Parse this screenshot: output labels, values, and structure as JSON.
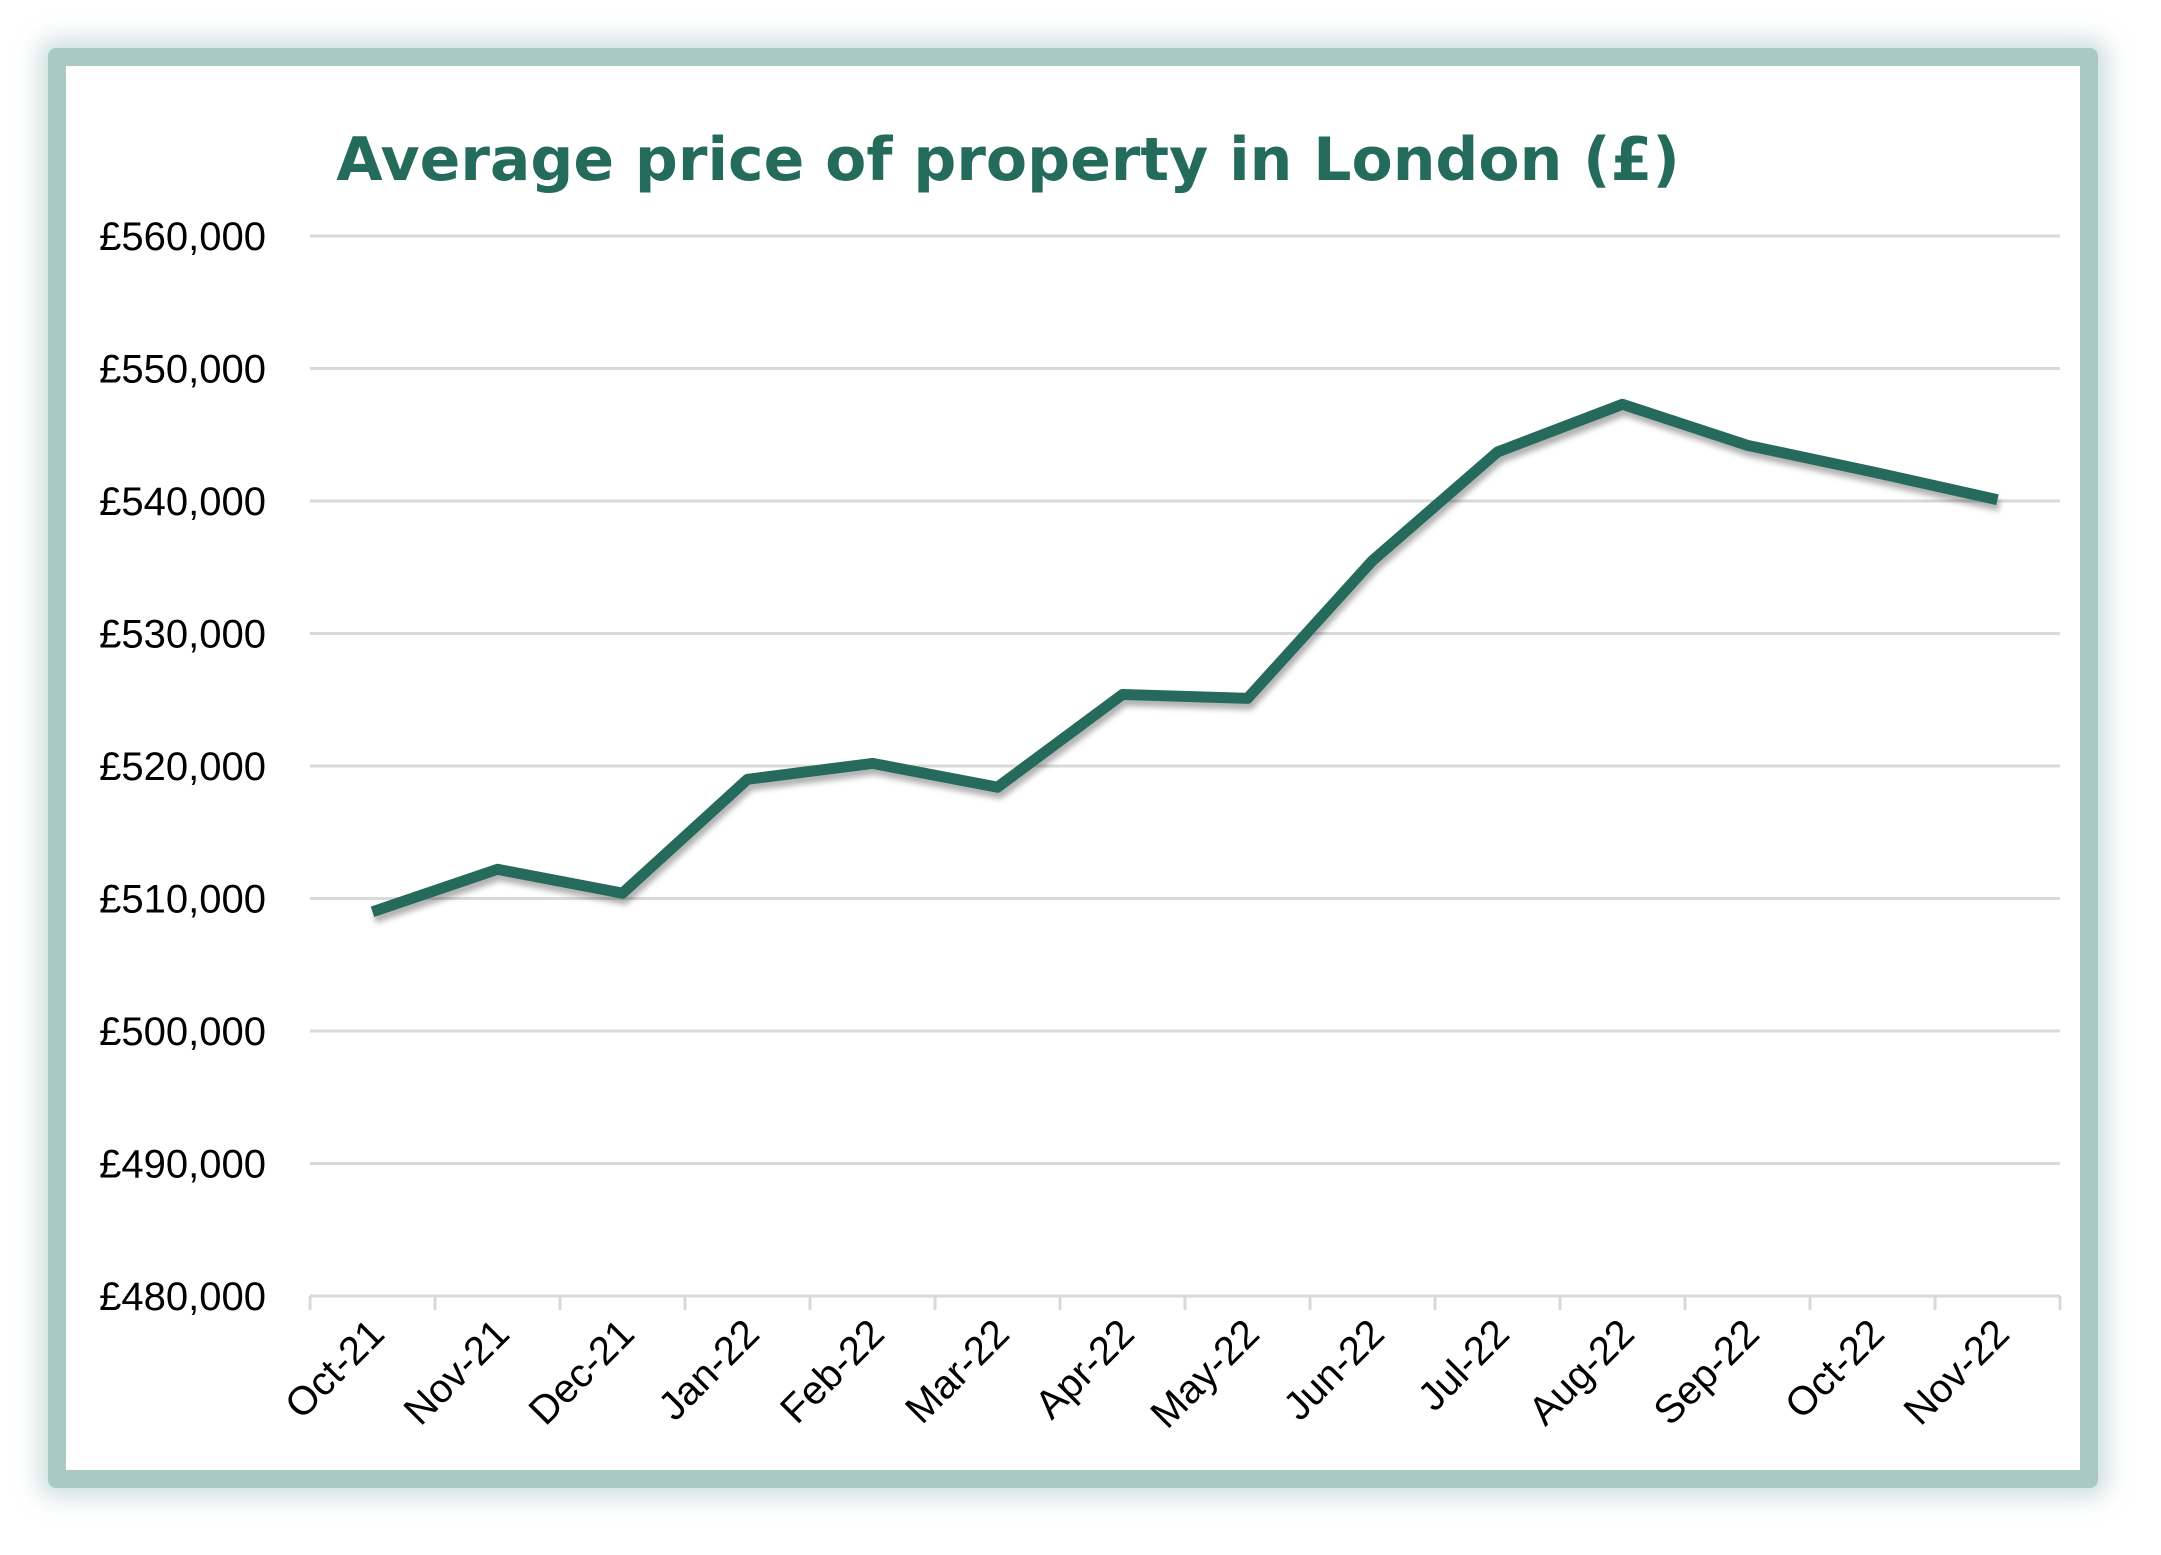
{
  "chart_data": {
    "type": "line",
    "title": "Average price of property in London (£)",
    "xlabel": "",
    "ylabel": "",
    "categories": [
      "Oct-21",
      "Nov-21",
      "Dec-21",
      "Jan-22",
      "Feb-22",
      "Mar-22",
      "Apr-22",
      "May-22",
      "Jun-22",
      "Jul-22",
      "Aug-22",
      "Sep-22",
      "Oct-22",
      "Nov-22"
    ],
    "series": [
      {
        "values": [
          509000,
          512200,
          510400,
          519000,
          520200,
          518400,
          525400,
          525100,
          535500,
          543700,
          547300,
          544200,
          542200,
          540100
        ]
      }
    ],
    "ylim": [
      480000,
      560000
    ],
    "yticks": [
      480000,
      490000,
      500000,
      510000,
      520000,
      530000,
      540000,
      550000,
      560000
    ],
    "ytick_labels": [
      "£480,000",
      "£490,000",
      "£500,000",
      "£510,000",
      "£520,000",
      "£530,000",
      "£540,000",
      "£550,000",
      "£560,000"
    ],
    "grid": true,
    "legend": "none",
    "colors": {
      "line": "#256b5c",
      "title": "#256b5c",
      "grid": "#d9d9d9",
      "frame": "#a9c9c3"
    }
  }
}
